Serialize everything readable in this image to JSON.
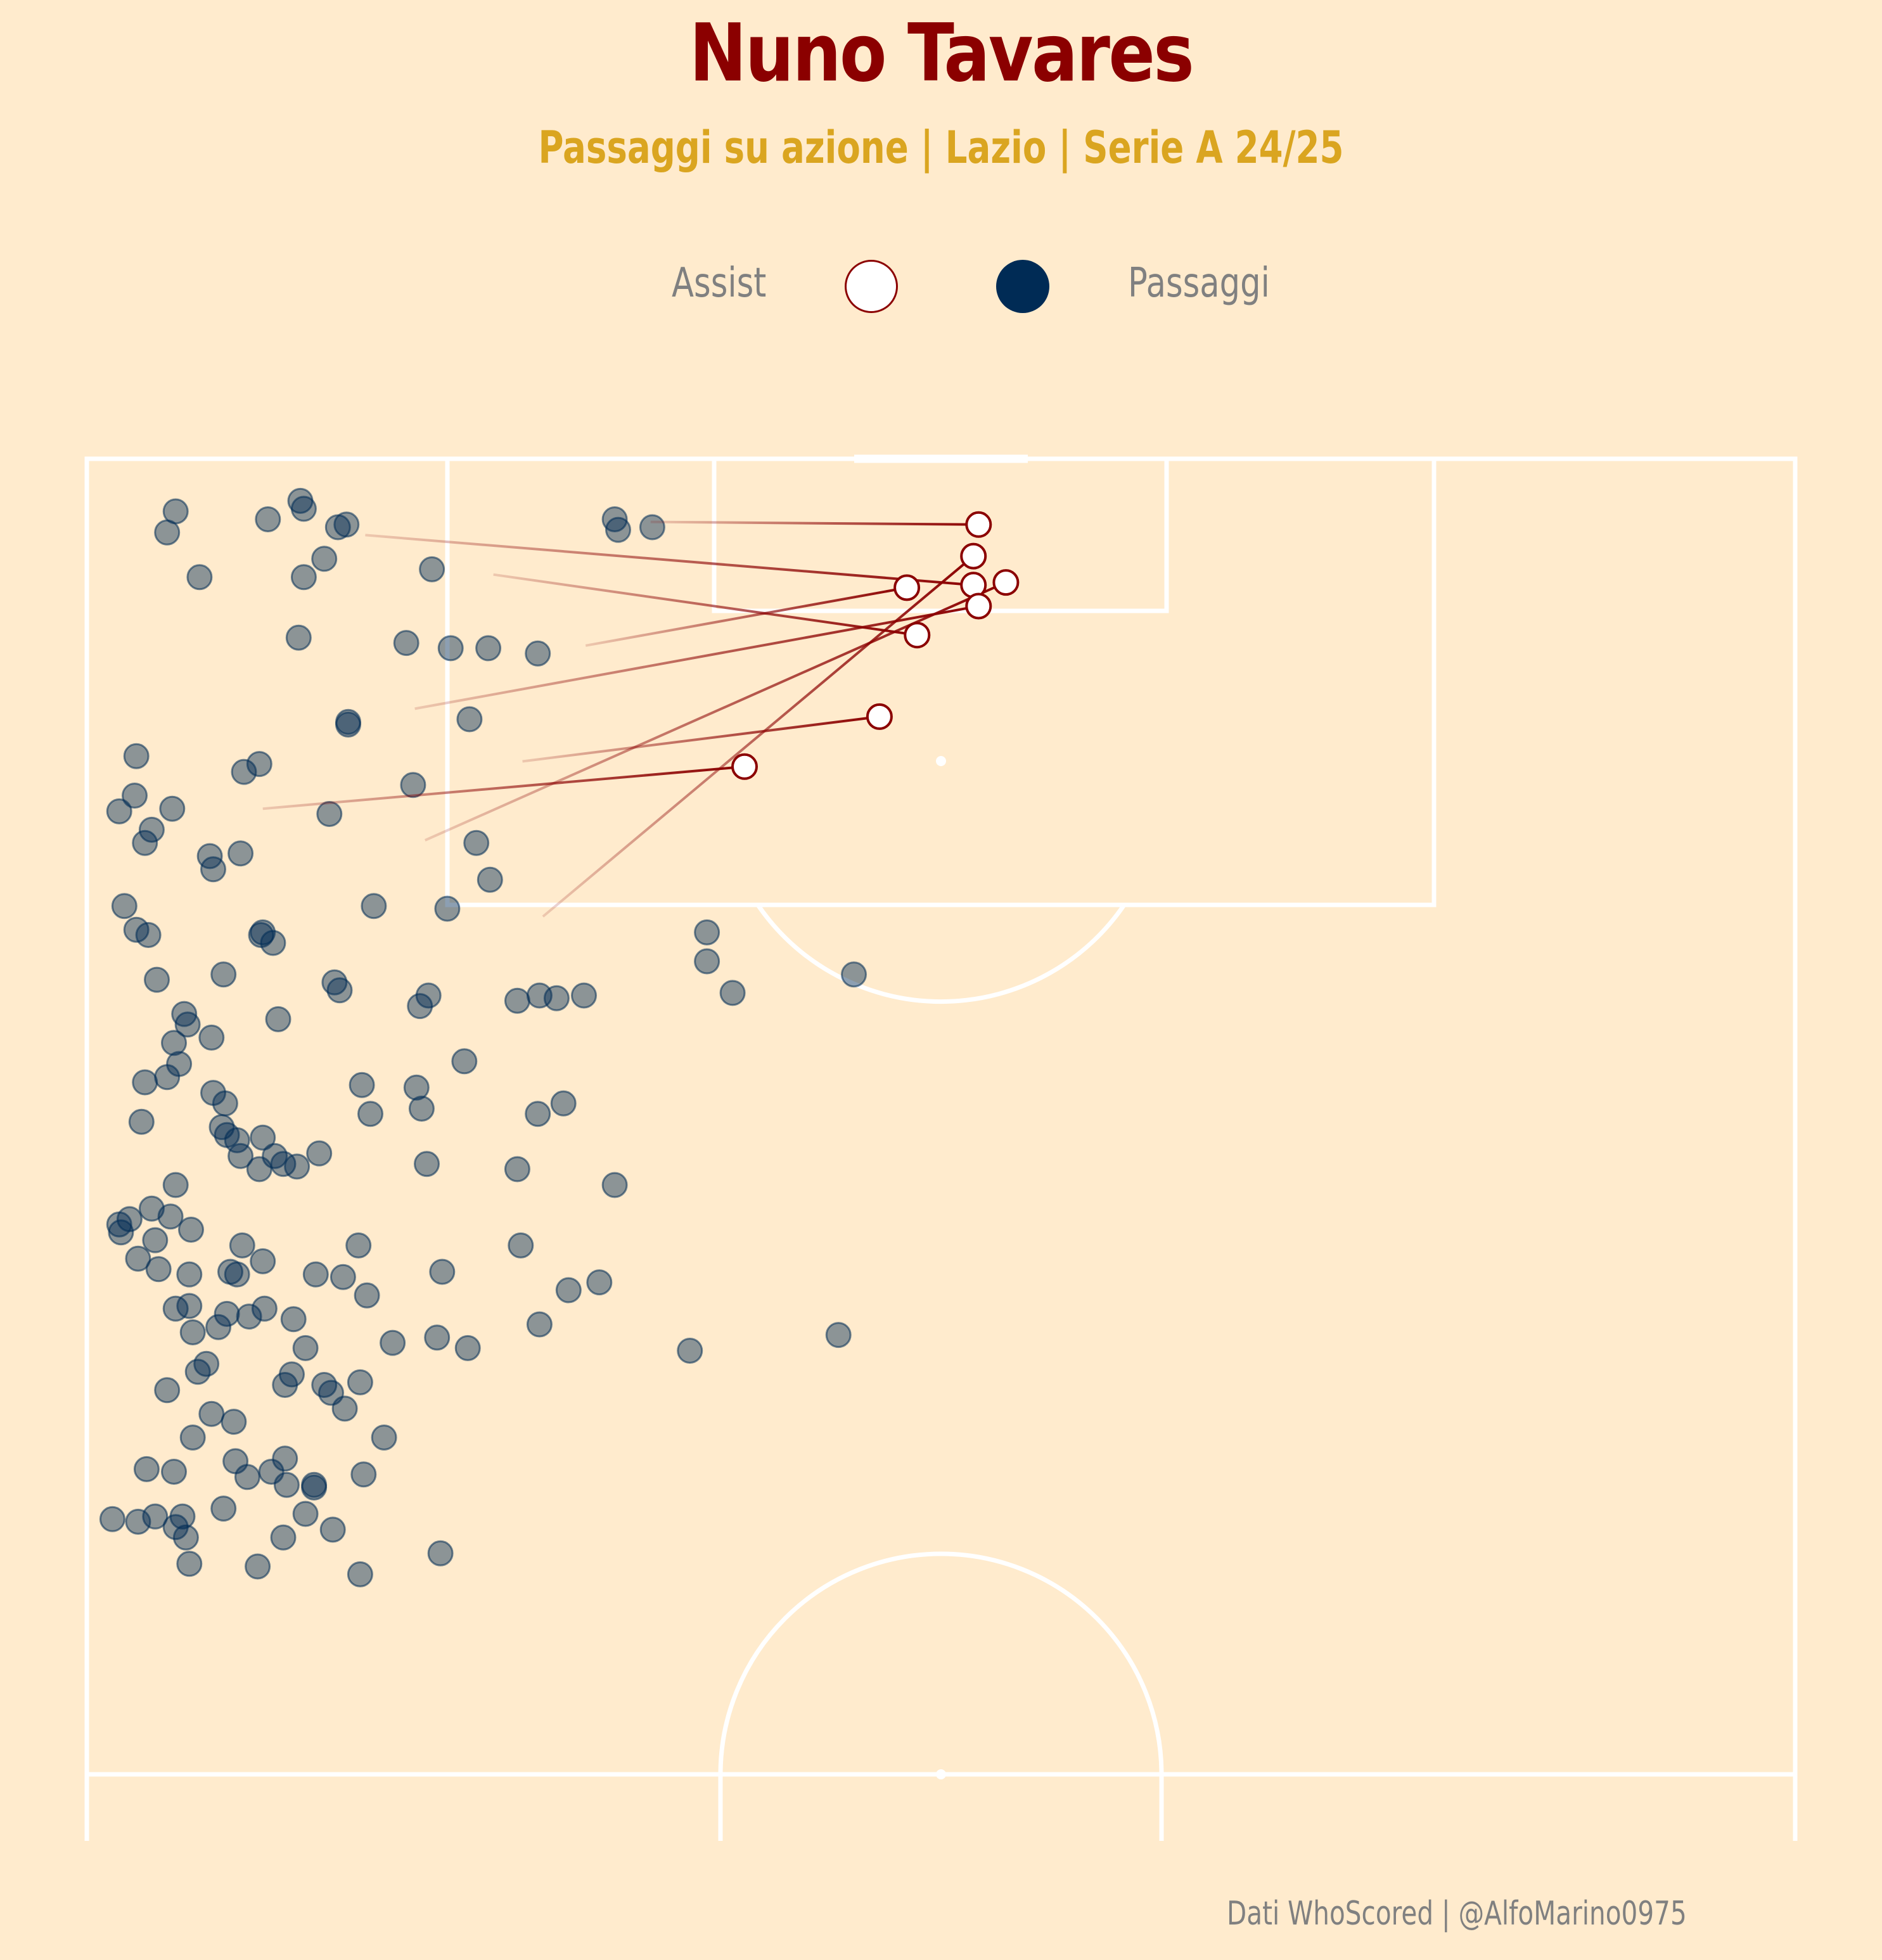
{
  "title": "Nuno Tavares",
  "subtitle": "Passaggi su azione | Lazio | Serie A 24/25",
  "legend": {
    "assist_label": "Assist",
    "pass_label": "Passaggi"
  },
  "footer": "Dati WhoScored | @AlfoMarino0975",
  "colors": {
    "background": "#FFEBCD",
    "title": "#8B0000",
    "subtitle": "#DAA520",
    "assist_line": "#8B0000",
    "assist_marker_fill": "#FFFFFF",
    "pass_marker": "#002B55",
    "pitch_lines": "#FFFFFF",
    "footer_text": "#808080"
  },
  "chart_data": {
    "type": "scatter",
    "pitch": "vertical half-pitch, attacking upward",
    "xlim": [
      0,
      100
    ],
    "ylim": [
      50,
      100
    ],
    "series": [
      {
        "name": "Passaggi",
        "points": [
          [
            5.2,
            98
          ],
          [
            4.7,
            97.2
          ],
          [
            10.6,
            97.7
          ],
          [
            12.5,
            98.4
          ],
          [
            12.7,
            98.1
          ],
          [
            15.2,
            97.5
          ],
          [
            14.7,
            97.4
          ],
          [
            30.9,
            97.7
          ],
          [
            31.1,
            97.3
          ],
          [
            33.1,
            97.4
          ],
          [
            6.6,
            95.5
          ],
          [
            12.7,
            95.5
          ],
          [
            13.9,
            96.2
          ],
          [
            20.2,
            95.8
          ],
          [
            12.4,
            93.2
          ],
          [
            18.7,
            93.0
          ],
          [
            21.3,
            92.8
          ],
          [
            23.5,
            92.8
          ],
          [
            26.4,
            92.6
          ],
          [
            15.3,
            90.0
          ],
          [
            15.3,
            89.9
          ],
          [
            22.4,
            90.1
          ],
          [
            2.9,
            88.7
          ],
          [
            9.2,
            88.1
          ],
          [
            10.1,
            88.4
          ],
          [
            19.1,
            87.6
          ],
          [
            2.8,
            87.2
          ],
          [
            1.9,
            86.6
          ],
          [
            5.0,
            86.7
          ],
          [
            14.2,
            86.5
          ],
          [
            3.8,
            85.9
          ],
          [
            3.4,
            85.4
          ],
          [
            7.2,
            84.9
          ],
          [
            9.0,
            85.0
          ],
          [
            22.8,
            85.4
          ],
          [
            7.4,
            84.4
          ],
          [
            23.6,
            84.0
          ],
          [
            2.2,
            83.0
          ],
          [
            16.8,
            83.0
          ],
          [
            21.1,
            82.9
          ],
          [
            2.9,
            82.1
          ],
          [
            3.6,
            81.9
          ],
          [
            10.2,
            81.9
          ],
          [
            10.3,
            82.0
          ],
          [
            10.9,
            81.6
          ],
          [
            36.3,
            82.0
          ],
          [
            36.3,
            80.9
          ],
          [
            44.9,
            80.4
          ],
          [
            14.5,
            80.1
          ],
          [
            14.8,
            79.8
          ],
          [
            4.1,
            80.2
          ],
          [
            8.0,
            80.4
          ],
          [
            20.0,
            79.6
          ],
          [
            19.5,
            79.2
          ],
          [
            26.5,
            79.6
          ],
          [
            25.2,
            79.4
          ],
          [
            27.5,
            79.5
          ],
          [
            29.1,
            79.6
          ],
          [
            37.8,
            79.7
          ],
          [
            11.2,
            78.7
          ],
          [
            5.7,
            78.9
          ],
          [
            5.9,
            78.5
          ],
          [
            7.3,
            78.0
          ],
          [
            5.1,
            77.8
          ],
          [
            5.4,
            77.0
          ],
          [
            22.1,
            77.1
          ],
          [
            4.7,
            76.5
          ],
          [
            3.4,
            76.3
          ],
          [
            7.4,
            75.9
          ],
          [
            8.1,
            75.5
          ],
          [
            19.3,
            76.1
          ],
          [
            16.1,
            76.2
          ],
          [
            16.6,
            75.1
          ],
          [
            19.6,
            75.3
          ],
          [
            26.4,
            75.1
          ],
          [
            27.9,
            75.5
          ],
          [
            3.2,
            74.8
          ],
          [
            7.9,
            74.6
          ],
          [
            8.2,
            74.3
          ],
          [
            8.8,
            74.1
          ],
          [
            10.3,
            74.2
          ],
          [
            9.0,
            73.5
          ],
          [
            11.0,
            73.5
          ],
          [
            10.1,
            73.0
          ],
          [
            11.5,
            73.2
          ],
          [
            12.3,
            73.1
          ],
          [
            13.6,
            73.6
          ],
          [
            19.9,
            73.2
          ],
          [
            25.2,
            73.0
          ],
          [
            5.2,
            72.4
          ],
          [
            30.9,
            72.4
          ],
          [
            3.8,
            71.5
          ],
          [
            4.9,
            71.2
          ],
          [
            2.5,
            71.1
          ],
          [
            1.9,
            70.9
          ],
          [
            2.0,
            70.6
          ],
          [
            6.1,
            70.7
          ],
          [
            4.0,
            70.3
          ],
          [
            9.1,
            70.1
          ],
          [
            15.9,
            70.1
          ],
          [
            25.4,
            70.1
          ],
          [
            3.0,
            69.6
          ],
          [
            4.2,
            69.2
          ],
          [
            6.0,
            69.0
          ],
          [
            8.4,
            69.1
          ],
          [
            8.8,
            69.0
          ],
          [
            10.3,
            69.5
          ],
          [
            13.4,
            69.0
          ],
          [
            15.0,
            68.9
          ],
          [
            20.8,
            69.1
          ],
          [
            30.0,
            68.7
          ],
          [
            28.2,
            68.4
          ],
          [
            16.4,
            68.2
          ],
          [
            6.0,
            67.8
          ],
          [
            5.2,
            67.7
          ],
          [
            8.2,
            67.5
          ],
          [
            9.5,
            67.4
          ],
          [
            10.4,
            67.7
          ],
          [
            12.1,
            67.3
          ],
          [
            7.7,
            67.0
          ],
          [
            6.2,
            66.8
          ],
          [
            12.8,
            66.2
          ],
          [
            26.5,
            67.1
          ],
          [
            17.9,
            66.4
          ],
          [
            20.5,
            66.6
          ],
          [
            22.3,
            66.2
          ],
          [
            35.3,
            66.1
          ],
          [
            44.0,
            66.7
          ],
          [
            7.0,
            65.6
          ],
          [
            6.5,
            65.3
          ],
          [
            12.0,
            65.2
          ],
          [
            11.6,
            64.8
          ],
          [
            13.9,
            64.8
          ],
          [
            16.0,
            64.9
          ],
          [
            4.7,
            64.6
          ],
          [
            7.3,
            63.7
          ],
          [
            14.3,
            64.5
          ],
          [
            15.1,
            63.9
          ],
          [
            8.6,
            63.4
          ],
          [
            6.2,
            62.8
          ],
          [
            17.4,
            62.8
          ],
          [
            8.7,
            61.9
          ],
          [
            11.6,
            62.0
          ],
          [
            16.2,
            61.4
          ],
          [
            10.8,
            61.5
          ],
          [
            13.3,
            61.0
          ],
          [
            3.5,
            61.6
          ],
          [
            5.1,
            61.5
          ],
          [
            9.4,
            61.3
          ],
          [
            11.7,
            61.0
          ],
          [
            13.3,
            60.9
          ],
          [
            4.0,
            59.8
          ],
          [
            1.5,
            59.7
          ],
          [
            5.6,
            59.8
          ],
          [
            8.0,
            60.1
          ],
          [
            12.8,
            59.9
          ],
          [
            14.4,
            59.3
          ],
          [
            3.0,
            59.6
          ],
          [
            5.2,
            59.4
          ],
          [
            5.8,
            59.0
          ],
          [
            11.5,
            59.0
          ],
          [
            6.0,
            58.0
          ],
          [
            16.0,
            57.6
          ],
          [
            10.0,
            57.9
          ],
          [
            20.7,
            58.4
          ]
        ]
      },
      {
        "name": "Assist",
        "passes": [
          [
            [
              16.3,
              97.1
            ],
            [
              51.9,
              95.2
            ]
          ],
          [
            [
              33.0,
              97.6
            ],
            [
              52.2,
              97.5
            ]
          ],
          [
            [
              23.8,
              95.6
            ],
            [
              48.6,
              93.3
            ]
          ],
          [
            [
              29.2,
              92.9
            ],
            [
              48.0,
              95.1
            ]
          ],
          [
            [
              19.2,
              90.5
            ],
            [
              52.2,
              94.4
            ]
          ],
          [
            [
              10.3,
              86.7
            ],
            [
              38.5,
              88.3
            ]
          ],
          [
            [
              26.7,
              82.6
            ],
            [
              51.9,
              96.3
            ]
          ],
          [
            [
              25.5,
              88.5
            ],
            [
              46.4,
              90.2
            ]
          ],
          [
            [
              19.8,
              85.5
            ],
            [
              53.8,
              95.3
            ]
          ]
        ]
      }
    ]
  }
}
